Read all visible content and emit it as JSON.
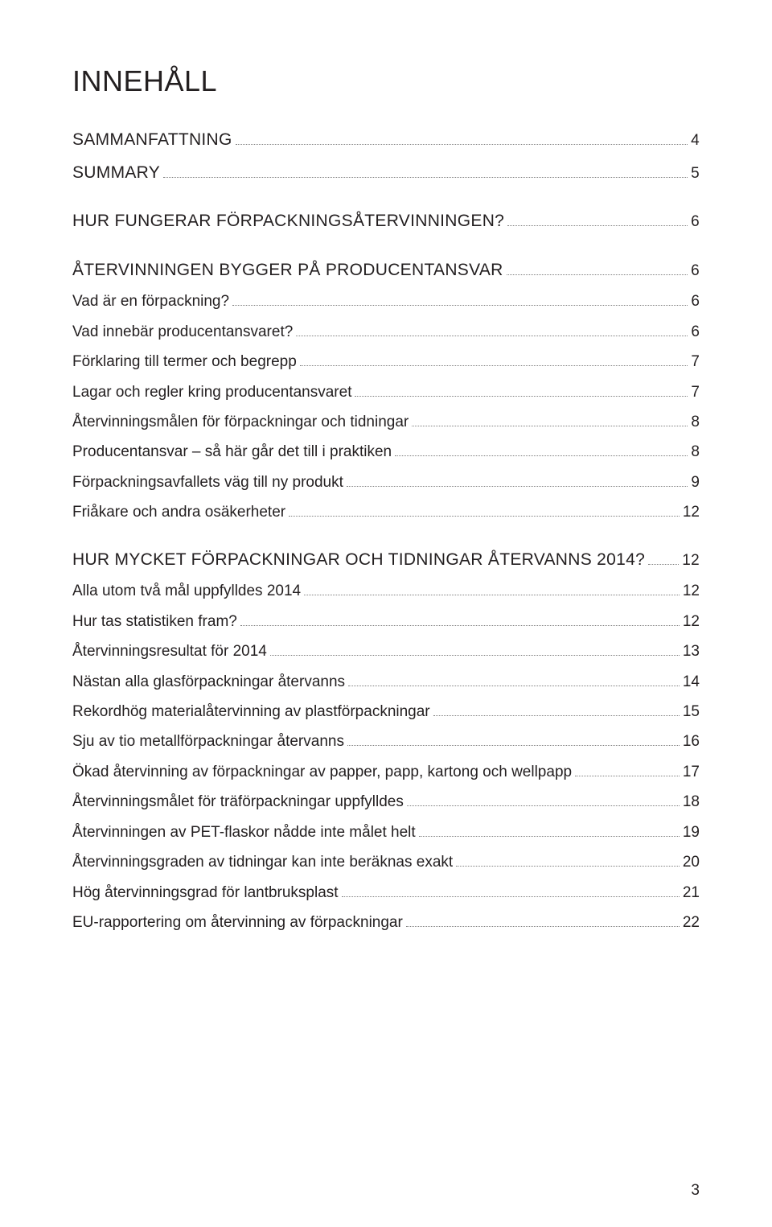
{
  "title": "INNEHÅLL",
  "page_number": "3",
  "colors": {
    "text": "#231f20",
    "dots": "#808080",
    "background": "#ffffff"
  },
  "typography": {
    "title_fontsize_pt": 27,
    "heading_fontsize_pt": 16,
    "sub_fontsize_pt": 14,
    "title_weight": 300,
    "heading_weight": 300,
    "sub_weight": 400,
    "font_family": "Myriad Pro / sans-serif"
  },
  "blocks": [
    {
      "lines": [
        {
          "label": "SAMMANFATTNING",
          "page": "4",
          "type": "heading"
        },
        {
          "label": "SUMMARY",
          "page": "5",
          "type": "heading"
        }
      ]
    },
    {
      "lines": [
        {
          "label": "HUR FUNGERAR FÖRPACKNINGSÅTERVINNINGEN?",
          "page": "6",
          "type": "heading"
        }
      ]
    },
    {
      "lines": [
        {
          "label": "ÅTERVINNINGEN BYGGER PÅ PRODUCENTANSVAR",
          "page": "6",
          "type": "heading"
        },
        {
          "label": "Vad är en förpackning?",
          "page": "6",
          "type": "sub"
        },
        {
          "label": "Vad innebär producentansvaret?",
          "page": "6",
          "type": "sub"
        },
        {
          "label": "Förklaring till termer och begrepp",
          "page": "7",
          "type": "sub"
        },
        {
          "label": "Lagar och regler kring producentansvaret",
          "page": "7",
          "type": "sub"
        },
        {
          "label": "Återvinningsmålen för förpackningar och tidningar",
          "page": "8",
          "type": "sub"
        },
        {
          "label": "Producentansvar – så här går det till i praktiken",
          "page": "8",
          "type": "sub"
        },
        {
          "label": "Förpackningsavfallets väg till ny produkt",
          "page": "9",
          "type": "sub"
        },
        {
          "label": "Friåkare och andra osäkerheter",
          "page": "12",
          "type": "sub"
        }
      ]
    },
    {
      "lines": [
        {
          "label": "HUR MYCKET FÖRPACKNINGAR OCH TIDNINGAR ÅTERVANNS 2014?",
          "page": "12",
          "type": "heading"
        },
        {
          "label": "Alla utom två mål uppfylldes 2014",
          "page": "12",
          "type": "sub"
        },
        {
          "label": "Hur tas statistiken fram?",
          "page": "12",
          "type": "sub"
        },
        {
          "label": "Återvinningsresultat för 2014",
          "page": "13",
          "type": "sub"
        },
        {
          "label": "Nästan alla glasförpackningar återvanns",
          "page": "14",
          "type": "sub"
        },
        {
          "label": "Rekordhög materialåtervinning av plastförpackningar",
          "page": "15",
          "type": "sub"
        },
        {
          "label": "Sju av tio metallförpackningar återvanns",
          "page": "16",
          "type": "sub"
        },
        {
          "label": "Ökad återvinning av förpackningar av papper, papp, kartong och wellpapp",
          "page": "17",
          "type": "sub"
        },
        {
          "label": "Återvinningsmålet för träförpackningar uppfylldes",
          "page": "18",
          "type": "sub"
        },
        {
          "label": "Återvinningen av PET-flaskor nådde inte målet helt",
          "page": "19",
          "type": "sub"
        },
        {
          "label": "Återvinningsgraden av tidningar kan inte beräknas exakt",
          "page": "20",
          "type": "sub"
        },
        {
          "label": "Hög återvinningsgrad för lantbruksplast",
          "page": "21",
          "type": "sub"
        },
        {
          "label": "EU-rapportering om återvinning av förpackningar",
          "page": "22",
          "type": "sub"
        }
      ]
    }
  ]
}
